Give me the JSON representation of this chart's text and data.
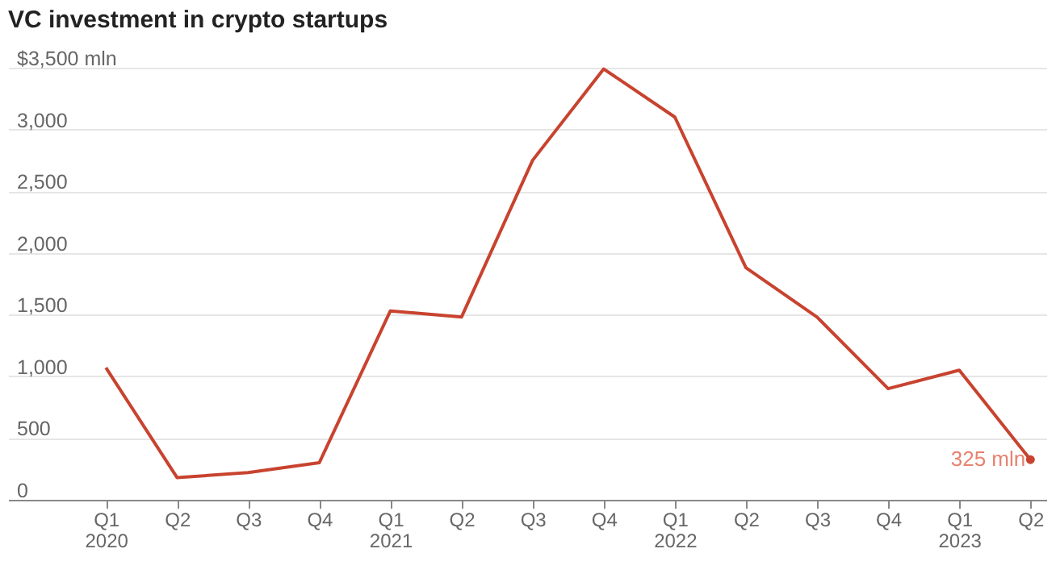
{
  "chart_data": {
    "type": "line",
    "title": "VC investment in crypto startups",
    "categories": [
      "Q1 2020",
      "Q2",
      "Q3",
      "Q4",
      "Q1 2021",
      "Q2",
      "Q3",
      "Q4",
      "Q1 2022",
      "Q2",
      "Q3",
      "Q4",
      "Q1 2023",
      "Q2"
    ],
    "series": [
      {
        "color": "#c8432f",
        "values": [
          1070,
          180,
          220,
          300,
          1530,
          1480,
          2750,
          3490,
          3100,
          1880,
          1480,
          900,
          1050,
          325
        ]
      }
    ],
    "ylim": [
      0,
      3500
    ],
    "yticks": [
      0,
      500,
      {
        "value": 1000,
        "label": "1,000"
      },
      {
        "value": 1500,
        "label": "1,500"
      },
      {
        "value": 2000,
        "label": "2,000"
      },
      {
        "value": 2500,
        "label": "2,500"
      },
      {
        "value": 3000,
        "label": "3,000"
      },
      {
        "value": 3500,
        "label": "$3,500 mln"
      }
    ],
    "grid": "y",
    "annotations": [
      "325 mln"
    ]
  }
}
